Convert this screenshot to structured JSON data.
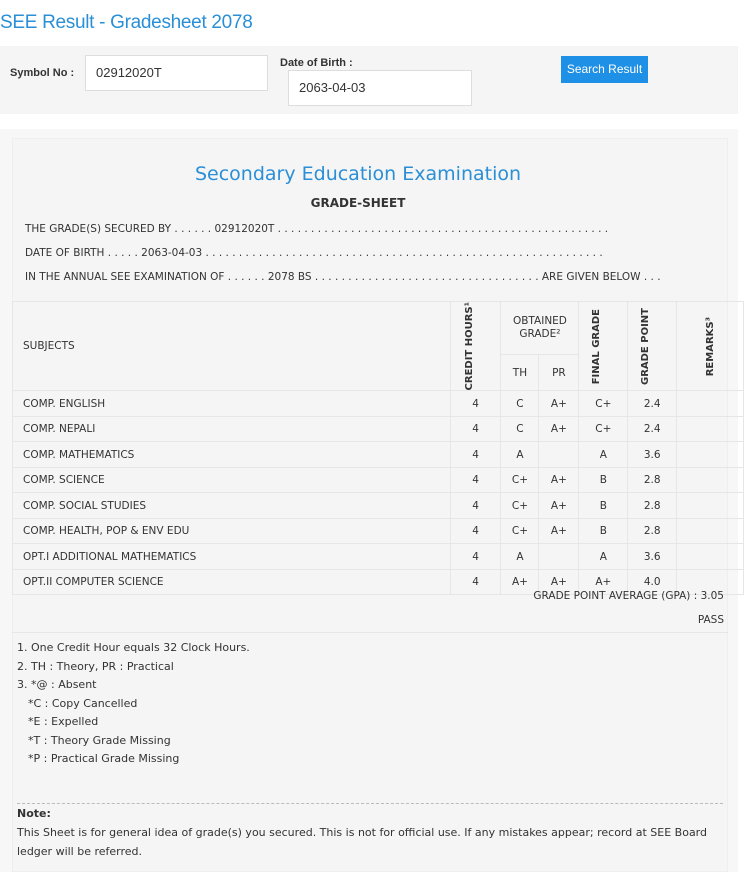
{
  "page_title": "SEE Result - Gradesheet 2078",
  "search": {
    "symbol_label": "Symbol No :",
    "symbol_value": "02912020T",
    "dob_label": "Date of Birth :",
    "dob_value": "2063-04-03",
    "button": "Search Result"
  },
  "sheet": {
    "heading": "Secondary Education Examination",
    "subheading": "GRADE-SHEET",
    "lines": [
      "THE GRADE(S) SECURED BY . . . . . . 02912020T . . . . . . . . . . . . . . . . . . . . . . . . . . . . . . . . . . . . . . . . . . . . . . . . . .",
      "DATE OF BIRTH . . . . . 2063-04-03 . . . . . . . . . . . . . . . . . . . . . . . . . . . . . . . . . . . . . . . . . . . . . . . . . . . . . . . . . . . .",
      "IN THE ANNUAL SEE EXAMINATION OF . . . . . . 2078 BS . . . . . . . . . . . . . . . . . . . . . . . . . . . . . . . . . . ARE GIVEN BELOW . . ."
    ]
  },
  "table": {
    "headers": {
      "subjects": "SUBJECTS",
      "credit": "CREDIT HOURS¹",
      "obtained": "OBTAINED GRADE²",
      "th": "TH",
      "pr": "PR",
      "final": "FINAL GRADE",
      "point": "GRADE POINT",
      "remarks": "REMARKS³"
    },
    "rows": [
      {
        "subject": "COMP. ENGLISH",
        "credit": "4",
        "th": "C",
        "pr": "A+",
        "final": "C+",
        "point": "2.4",
        "remarks": ""
      },
      {
        "subject": "COMP. NEPALI",
        "credit": "4",
        "th": "C",
        "pr": "A+",
        "final": "C+",
        "point": "2.4",
        "remarks": ""
      },
      {
        "subject": "COMP. MATHEMATICS",
        "credit": "4",
        "th": "A",
        "pr": "",
        "final": "A",
        "point": "3.6",
        "remarks": ""
      },
      {
        "subject": "COMP. SCIENCE",
        "credit": "4",
        "th": "C+",
        "pr": "A+",
        "final": "B",
        "point": "2.8",
        "remarks": ""
      },
      {
        "subject": "COMP. SOCIAL STUDIES",
        "credit": "4",
        "th": "C+",
        "pr": "A+",
        "final": "B",
        "point": "2.8",
        "remarks": ""
      },
      {
        "subject": "COMP. HEALTH, POP & ENV EDU",
        "credit": "4",
        "th": "C+",
        "pr": "A+",
        "final": "B",
        "point": "2.8",
        "remarks": ""
      },
      {
        "subject": "OPT.I ADDITIONAL MATHEMATICS",
        "credit": "4",
        "th": "A",
        "pr": "",
        "final": "A",
        "point": "3.6",
        "remarks": ""
      },
      {
        "subject": "OPT.II COMPUTER SCIENCE",
        "credit": "4",
        "th": "A+",
        "pr": "A+",
        "final": "A+",
        "point": "4.0",
        "remarks": ""
      }
    ]
  },
  "gpa": "GRADE POINT AVERAGE (GPA) : 3.05",
  "result": "PASS",
  "footnotes": [
    "1. One Credit Hour equals 32 Clock Hours.",
    "2. TH : Theory, PR : Practical",
    "3. *@ : Absent",
    "*C : Copy Cancelled",
    "*E : Expelled",
    "*T : Theory Grade Missing",
    "*P : Practical Grade Missing"
  ],
  "note": {
    "label": "Note:",
    "text": "This Sheet is for general idea of grade(s) you secured. This is not for official use. If any mistakes appear; record at SEE Board ledger will be referred."
  }
}
